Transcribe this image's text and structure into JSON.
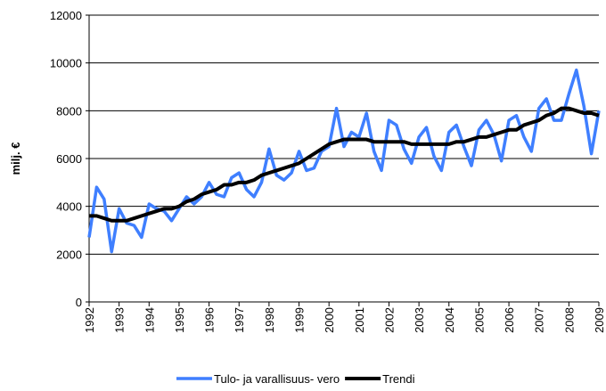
{
  "chart_data": {
    "type": "line",
    "y_label": "milj. €",
    "x": [
      1992,
      1992.25,
      1992.5,
      1992.75,
      1993,
      1993.25,
      1993.5,
      1993.75,
      1994,
      1994.25,
      1994.5,
      1994.75,
      1995,
      1995.25,
      1995.5,
      1995.75,
      1996,
      1996.25,
      1996.5,
      1996.75,
      1997,
      1997.25,
      1997.5,
      1997.75,
      1998,
      1998.25,
      1998.5,
      1998.75,
      1999,
      1999.25,
      1999.5,
      1999.75,
      2000,
      2000.25,
      2000.5,
      2000.75,
      2001,
      2001.25,
      2001.5,
      2001.75,
      2002,
      2002.25,
      2002.5,
      2002.75,
      2003,
      2003.25,
      2003.5,
      2003.75,
      2004,
      2004.25,
      2004.5,
      2004.75,
      2005,
      2005.25,
      2005.5,
      2005.75,
      2006,
      2006.25,
      2006.5,
      2006.75,
      2007,
      2007.25,
      2007.5,
      2007.75,
      2008,
      2008.25,
      2008.5,
      2008.75,
      2009
    ],
    "series": [
      {
        "name": "Tulo- ja varallisuus- vero",
        "color": "#3f7fff",
        "values": [
          2700,
          4800,
          4300,
          2100,
          3900,
          3300,
          3200,
          2700,
          4100,
          3900,
          3800,
          3400,
          3900,
          4400,
          4100,
          4400,
          5000,
          4500,
          4400,
          5200,
          5400,
          4700,
          4400,
          5000,
          6400,
          5300,
          5100,
          5400,
          6300,
          5500,
          5600,
          6300,
          6500,
          8100,
          6500,
          7100,
          6900,
          7900,
          6300,
          5500,
          7600,
          7400,
          6400,
          5800,
          6900,
          7300,
          6100,
          5500,
          7100,
          7400,
          6500,
          5700,
          7200,
          7600,
          7000,
          5900,
          7600,
          7800,
          6900,
          6300,
          8100,
          8500,
          7600,
          7600,
          8700,
          9700,
          8200,
          6200,
          8000
        ]
      },
      {
        "name": "Trendi",
        "color": "#000000",
        "values": [
          3600,
          3600,
          3500,
          3400,
          3400,
          3400,
          3500,
          3600,
          3700,
          3800,
          3900,
          3900,
          4000,
          4200,
          4300,
          4500,
          4600,
          4700,
          4900,
          4900,
          5000,
          5000,
          5100,
          5300,
          5400,
          5500,
          5600,
          5700,
          5800,
          6000,
          6200,
          6400,
          6600,
          6700,
          6800,
          6800,
          6800,
          6800,
          6700,
          6700,
          6700,
          6700,
          6700,
          6600,
          6600,
          6600,
          6600,
          6600,
          6600,
          6700,
          6700,
          6800,
          6900,
          6900,
          7000,
          7100,
          7200,
          7200,
          7400,
          7500,
          7600,
          7800,
          7900,
          8100,
          8100,
          8000,
          7900,
          7900,
          7800
        ]
      }
    ],
    "xlim": [
      1992,
      2009
    ],
    "xticks": [
      1992,
      1993,
      1994,
      1995,
      1996,
      1997,
      1998,
      1999,
      2000,
      2001,
      2002,
      2003,
      2004,
      2005,
      2006,
      2007,
      2008,
      2009
    ],
    "ylim": [
      0,
      12000
    ],
    "yticks": [
      0,
      2000,
      4000,
      6000,
      8000,
      10000,
      12000
    ],
    "grid": true,
    "legend": "bottom"
  }
}
